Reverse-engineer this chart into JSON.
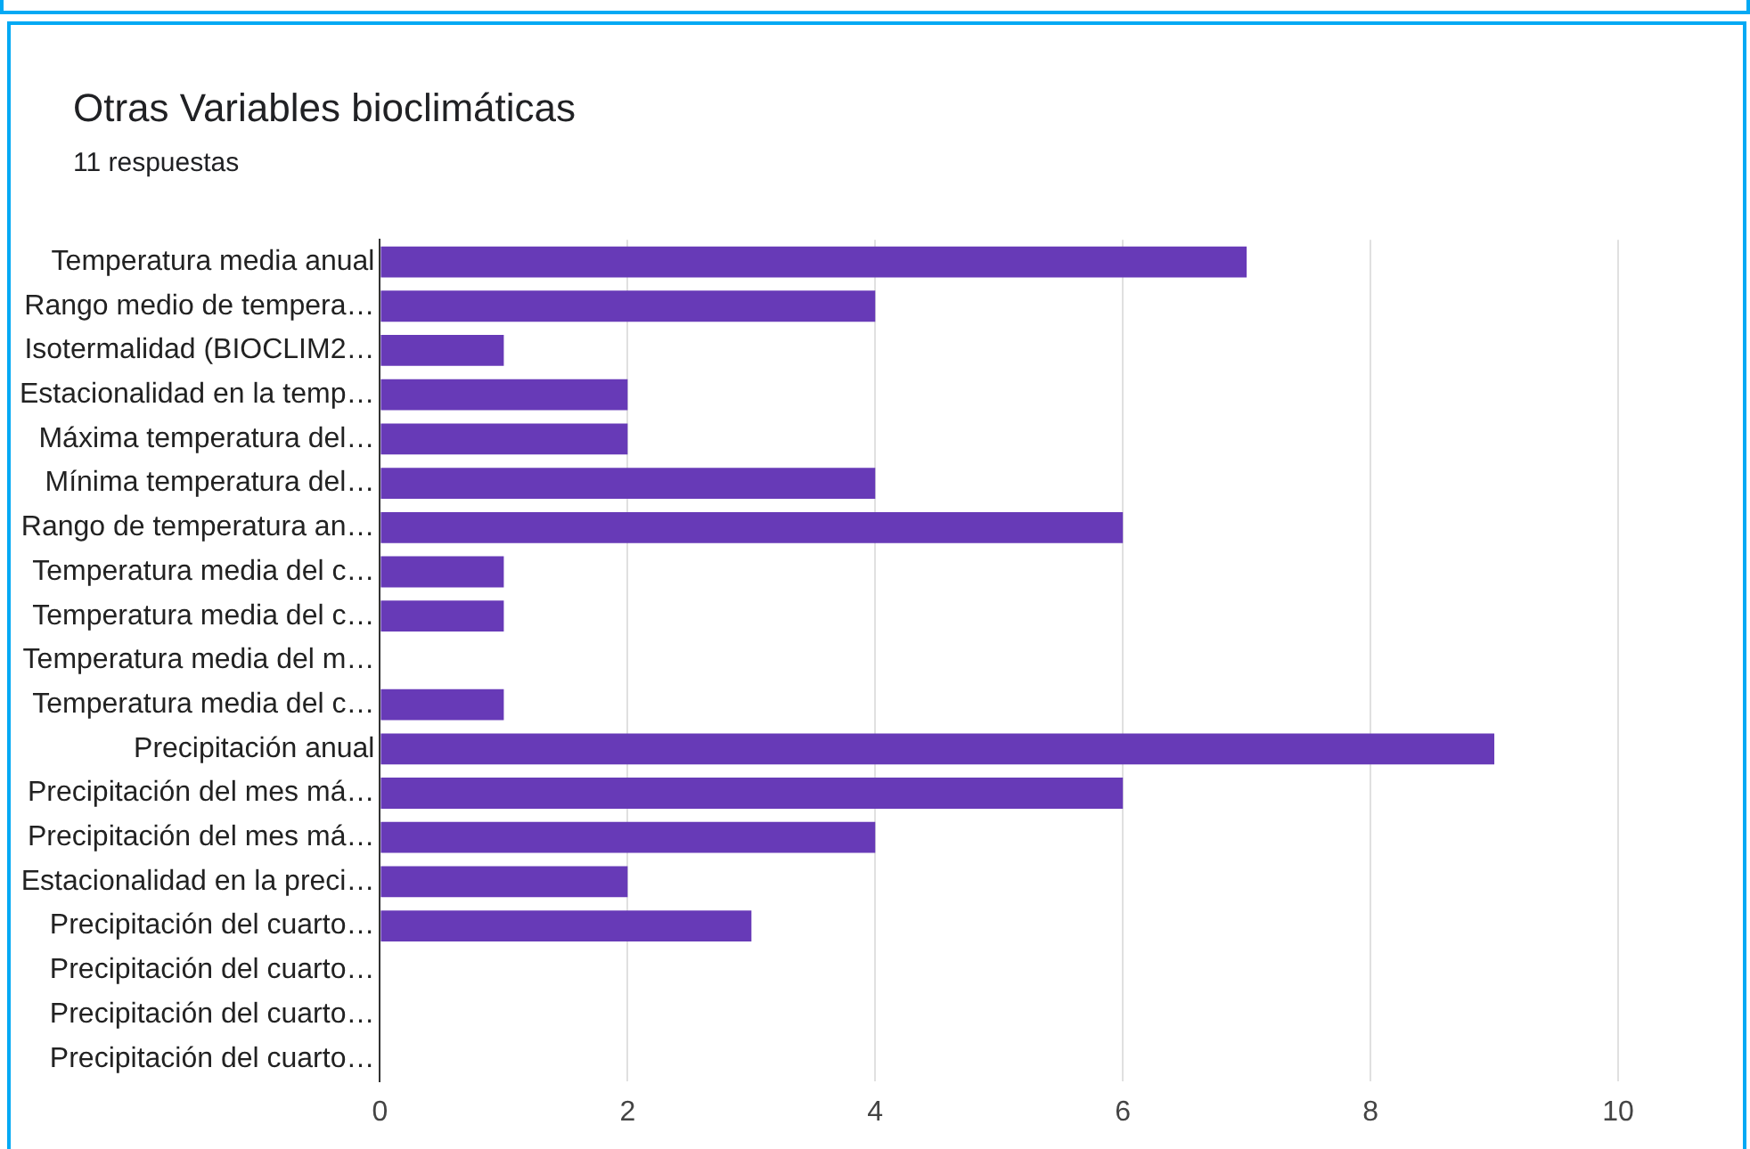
{
  "chart_data": {
    "type": "bar",
    "orientation": "horizontal",
    "title": "Otras Variables bioclimáticas",
    "subtitle": "11 respuestas",
    "categories": [
      "Temperatura media anual",
      "Rango medio de tempera…",
      "Isotermalidad (BIOCLIM2…",
      "Estacionalidad en la temp…",
      "Máxima temperatura del…",
      "Mínima temperatura del…",
      "Rango de temperatura an…",
      "Temperatura media del c…",
      "Temperatura media del c…",
      "Temperatura media del m…",
      "Temperatura media del c…",
      "Precipitación anual",
      "Precipitación del mes má…",
      "Precipitación del mes má…",
      "Estacionalidad en la preci…",
      "Precipitación del cuarto…",
      "Precipitación del cuarto…",
      "Precipitación del cuarto…",
      "Precipitación del cuarto…"
    ],
    "values": [
      7,
      4,
      1,
      2,
      2,
      4,
      6,
      1,
      1,
      0,
      1,
      9,
      6,
      4,
      2,
      3,
      0,
      0,
      0
    ],
    "color": "#673ab7",
    "xlim": [
      0,
      10
    ],
    "xticks": [
      0,
      2,
      4,
      6,
      8,
      10
    ],
    "grid": "x",
    "legend": false
  }
}
